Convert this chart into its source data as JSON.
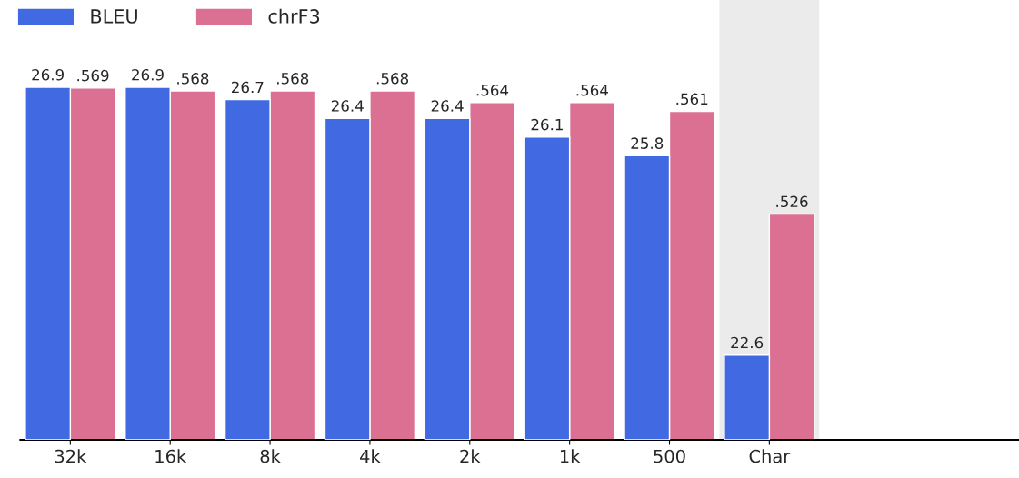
{
  "chart_data": {
    "type": "bar",
    "categories": [
      "32k",
      "16k",
      "8k",
      "4k",
      "2k",
      "1k",
      "500",
      "Char"
    ],
    "series": [
      {
        "name": "BLEU",
        "color": "#4169e1",
        "values": [
          26.9,
          26.9,
          26.7,
          26.4,
          26.4,
          26.1,
          25.8,
          22.6
        ],
        "value_labels": [
          "26.9",
          "26.9",
          "26.7",
          "26.4",
          "26.4",
          "26.1",
          "25.8",
          "22.6"
        ]
      },
      {
        "name": "chrF3",
        "color": "#db7093",
        "axis": "y2",
        "values": [
          0.569,
          0.568,
          0.568,
          0.568,
          0.564,
          0.564,
          0.561,
          0.526
        ],
        "value_labels": [
          ".569",
          ".568",
          ".568",
          ".568",
          ".564",
          ".564",
          ".561",
          ".526"
        ]
      }
    ],
    "ylim": [
      21.24,
      28.3
    ],
    "y2lim": [
      0.449,
      0.599
    ],
    "tick_labels": "x",
    "bands": [
      {
        "axis": "x",
        "from": "Char",
        "to": "Char",
        "color": "#ebebeb"
      }
    ],
    "legend": "top left",
    "grid": false
  }
}
